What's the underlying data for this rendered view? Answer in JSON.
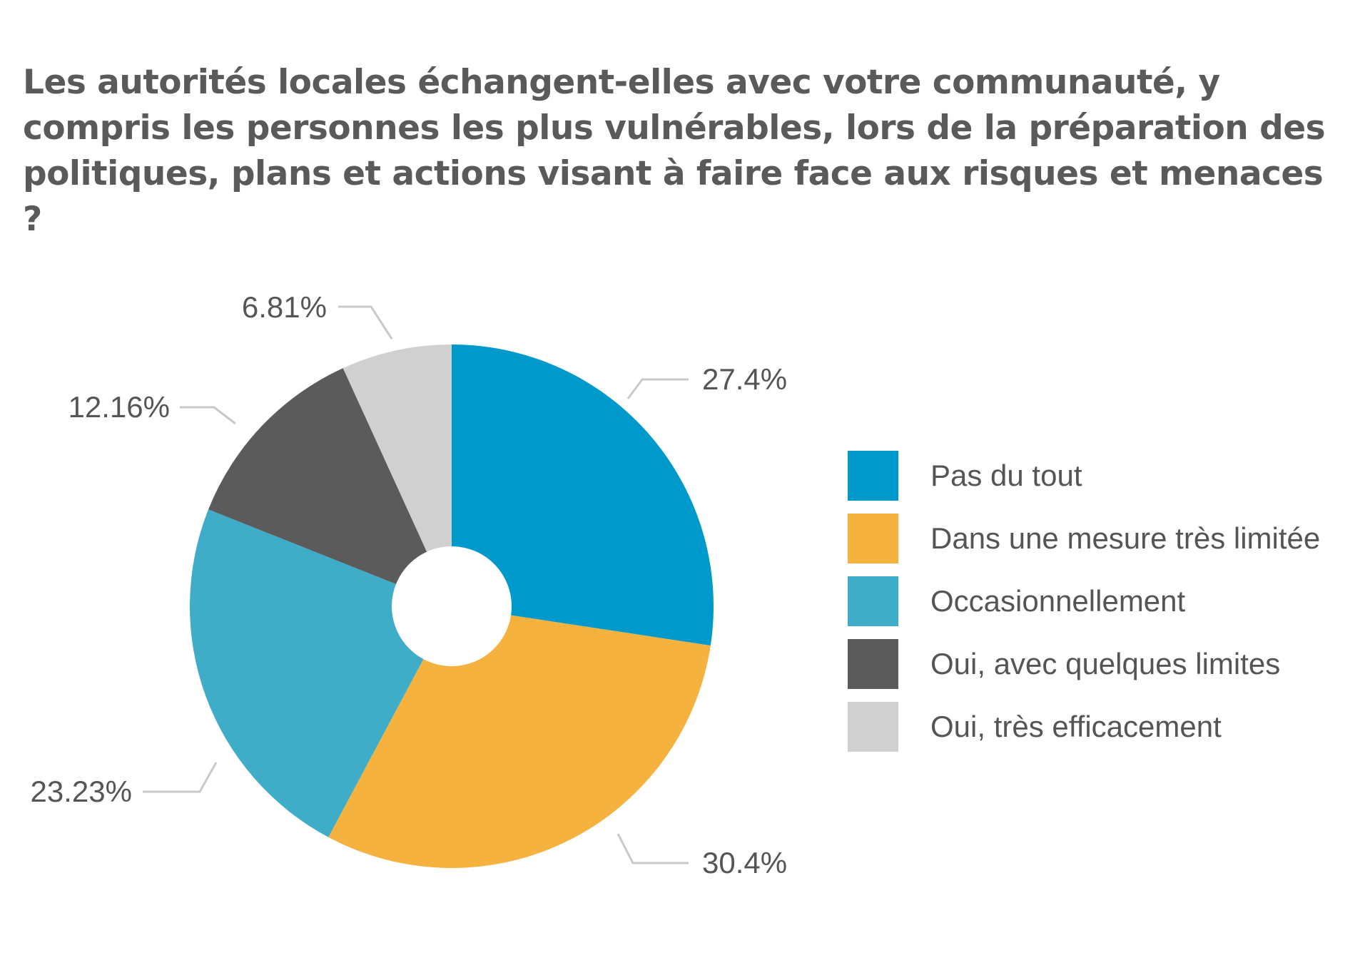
{
  "chart_data": {
    "type": "pie",
    "style": "donut",
    "title": "Les autorités locales échangent-elles avec votre communauté, y compris les personnes les plus vulnérables, lors de la préparation des politiques, plans et actions visant à faire face aux risques et menaces ?",
    "legend_position": "right",
    "slices": [
      {
        "label": "Pas du tout",
        "value": 27.4,
        "value_label": "27.4%",
        "color": "#0099cc"
      },
      {
        "label": "Dans une mesure très limitée",
        "value": 30.4,
        "value_label": "30.4%",
        "color": "#f5b23f"
      },
      {
        "label": "Occasionnellement",
        "value": 23.23,
        "value_label": "23.23%",
        "color": "#3facc8"
      },
      {
        "label": "Oui, avec quelques limites",
        "value": 12.16,
        "value_label": "12.16%",
        "color": "#5b5b5b"
      },
      {
        "label": "Oui, très efficacement",
        "value": 6.81,
        "value_label": "6.81%",
        "color": "#d0d0d0"
      }
    ]
  }
}
